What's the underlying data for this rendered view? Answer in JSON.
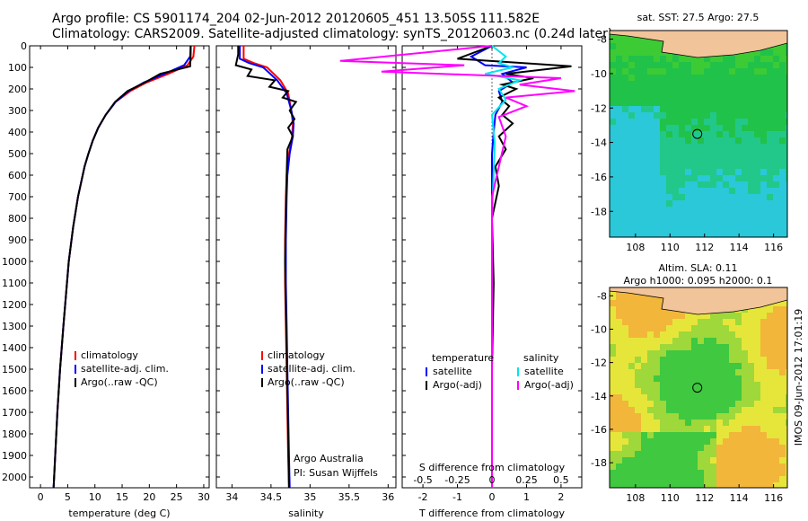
{
  "title_line1": "Argo profile: CS 5901174_204 02-Jun-2012 20120605_451 13.505S 111.582E",
  "title_line2": "Climatology: CARS2009. Satellite-adjusted climatology: synTS_20120603.nc (0.24d later)",
  "map1_header": "sat. SST: 27.5 Argo: 27.5",
  "map2_header_line1": "Altim. SLA: 0.11",
  "map2_header_line2": "Argo h1000: 0.095 h2000: 0.1",
  "side_text": "IMOS 09-Jun-2012 17:01:19",
  "attribution_line1": "Argo Australia",
  "attribution_line2": "PI: Susan Wijffels",
  "colors": {
    "climatology": "#ff0000",
    "satellite": "#0000ff",
    "argo": "#000000",
    "sal_satellite": "#00e5ee",
    "sal_argo": "#ff00ff",
    "land": "#f2c49a"
  },
  "chart_data": [
    {
      "type": "line",
      "xlabel": "temperature (deg C)",
      "ylabel": "",
      "xlim": [
        -2,
        31
      ],
      "ylim": [
        2050,
        0
      ],
      "xticks": [
        0,
        5,
        10,
        15,
        20,
        25,
        30
      ],
      "yticks": [
        0,
        100,
        200,
        300,
        400,
        500,
        600,
        700,
        800,
        900,
        1000,
        1100,
        1200,
        1300,
        1400,
        1500,
        1600,
        1700,
        1800,
        1900,
        2000
      ],
      "legend": [
        "climatology",
        "satellite-adj. clim.",
        "Argo(..raw -QC)"
      ],
      "legend_position": "center-right",
      "series": [
        {
          "name": "climatology",
          "color": "#ff0000",
          "x": [
            28.3,
            28.1,
            27.0,
            23.5,
            19.5,
            16.5,
            13.8,
            12.0,
            10.6,
            9.6,
            8.8,
            8.1,
            6.9,
            6.0,
            5.2,
            4.7,
            4.2,
            3.6,
            3.1,
            2.7,
            2.4
          ],
          "y": [
            0,
            50,
            90,
            130,
            170,
            210,
            260,
            320,
            380,
            440,
            500,
            560,
            700,
            840,
            1000,
            1150,
            1300,
            1500,
            1700,
            1900,
            2050
          ]
        },
        {
          "name": "satellite-adj. clim.",
          "color": "#0000ff",
          "x": [
            27.6,
            27.5,
            26.4,
            22.8,
            19.0,
            16.2,
            13.8,
            12.0,
            10.6,
            9.6,
            8.8,
            8.1,
            6.9,
            6.0,
            5.2,
            4.7,
            4.2,
            3.6,
            3.1,
            2.7,
            2.4
          ],
          "y": [
            0,
            50,
            90,
            130,
            170,
            210,
            260,
            320,
            380,
            440,
            500,
            560,
            700,
            840,
            1000,
            1150,
            1300,
            1500,
            1700,
            1900,
            2050
          ]
        },
        {
          "name": "Argo(..raw -QC)",
          "color": "#000000",
          "x": [
            27.6,
            27.6,
            27.5,
            22.0,
            19.2,
            16.0,
            13.7,
            12.0,
            10.6,
            9.6,
            8.8,
            8.1,
            6.9,
            6.0,
            5.2,
            4.7,
            4.2,
            3.6,
            3.1,
            2.7,
            2.4
          ],
          "y": [
            0,
            40,
            95,
            130,
            170,
            210,
            260,
            320,
            380,
            440,
            500,
            560,
            700,
            840,
            1000,
            1150,
            1300,
            1500,
            1700,
            1900,
            2050
          ]
        }
      ]
    },
    {
      "type": "line",
      "xlabel": "salinity",
      "xlim": [
        33.8,
        36.1
      ],
      "ylim": [
        2050,
        0
      ],
      "xticks": [
        34,
        34.5,
        35,
        35.5,
        36
      ],
      "legend": [
        "climatology",
        "satellite-adj. clim.",
        "Argo(..raw -QC)"
      ],
      "legend_position": "center-right",
      "series": [
        {
          "name": "climatology",
          "color": "#ff0000",
          "x": [
            34.15,
            34.15,
            34.28,
            34.45,
            34.62,
            34.72,
            34.76,
            34.78,
            34.77,
            34.73,
            34.7,
            34.69,
            34.68,
            34.68,
            34.69,
            34.7,
            34.71,
            34.72,
            34.73
          ],
          "y": [
            0,
            60,
            80,
            100,
            160,
            220,
            300,
            360,
            420,
            500,
            600,
            700,
            900,
            1100,
            1300,
            1500,
            1700,
            1900,
            2050
          ]
        },
        {
          "name": "satellite-adj. clim.",
          "color": "#0000ff",
          "x": [
            34.1,
            34.1,
            34.22,
            34.4,
            34.58,
            34.7,
            34.76,
            34.79,
            34.78,
            34.74,
            34.71,
            34.7,
            34.69,
            34.69,
            34.7,
            34.71,
            34.72,
            34.73,
            34.74
          ],
          "y": [
            0,
            60,
            80,
            100,
            160,
            220,
            300,
            360,
            420,
            500,
            600,
            700,
            900,
            1100,
            1300,
            1500,
            1700,
            1900,
            2050
          ]
        },
        {
          "name": "Argo(..raw -QC)",
          "color": "#000000",
          "x": [
            34.08,
            34.08,
            34.05,
            34.25,
            34.2,
            34.55,
            34.48,
            34.72,
            34.65,
            34.82,
            34.74,
            34.8,
            34.72,
            34.78,
            34.71,
            34.7,
            34.69,
            34.68,
            34.69,
            34.7,
            34.71,
            34.72,
            34.73
          ],
          "y": [
            0,
            40,
            90,
            110,
            140,
            160,
            190,
            210,
            240,
            260,
            300,
            340,
            380,
            420,
            480,
            600,
            800,
            1000,
            1200,
            1400,
            1600,
            1800,
            2050
          ]
        }
      ]
    },
    {
      "type": "line",
      "xlabel": "T difference from climatology",
      "xlabel2": "S difference from climatology",
      "xlim": [
        -2.6,
        2.6
      ],
      "ylim": [
        2050,
        0
      ],
      "xticks": [
        -2,
        -1,
        0,
        1,
        2
      ],
      "xticks2": [
        -0.5,
        -0.25,
        0,
        0.25,
        0.5
      ],
      "xtick2_labels": [
        "-0.5",
        "-0.25",
        "0",
        "0.25",
        "0.5"
      ],
      "legend_groups": [
        "temperature",
        "salinity"
      ],
      "legend": [
        "satellite",
        "Argo(-adj)",
        "satellite",
        "Argo(-adj)"
      ],
      "series": [
        {
          "name": "satellite",
          "group": "temperature",
          "color": "#0000ff",
          "x": [
            0,
            -0.6,
            -0.2,
            1.0,
            0.3,
            0.6,
            0.2,
            0.3,
            0.1,
            0.05,
            0.0,
            0.0,
            0.0,
            0.0,
            0.0
          ],
          "y": [
            0,
            50,
            90,
            100,
            130,
            170,
            210,
            260,
            320,
            400,
            500,
            800,
            1200,
            1600,
            2050
          ]
        },
        {
          "name": "Argo(-adj)",
          "group": "temperature",
          "color": "#000000",
          "x": [
            0,
            -1.0,
            2.3,
            1.5,
            0.4,
            1.2,
            0.3,
            0.7,
            0.2,
            0.5,
            0.3,
            0.6,
            0.2,
            0.4,
            0.1,
            0.2,
            0.0,
            0.05,
            0.0,
            0.0
          ],
          "y": [
            0,
            60,
            95,
            110,
            130,
            150,
            180,
            200,
            240,
            280,
            320,
            360,
            420,
            480,
            560,
            650,
            800,
            1100,
            1500,
            2050
          ]
        },
        {
          "name": "satellite",
          "group": "salinity",
          "color": "#00e5ee",
          "x": [
            0,
            0.1,
            0.05,
            0.15,
            -0.05,
            0.2,
            0.05,
            0.1,
            0.0,
            0.02,
            0.0,
            0.0
          ],
          "y": [
            0,
            50,
            80,
            100,
            130,
            160,
            200,
            250,
            320,
            450,
            800,
            2050
          ]
        },
        {
          "name": "Argo(-adj)",
          "group": "salinity",
          "color": "#ff00ff",
          "x": [
            0,
            -1.1,
            -0.2,
            -0.8,
            0.5,
            0.2,
            0.6,
            0.1,
            0.25,
            0.05,
            0.1,
            0.0,
            0.0
          ],
          "y": [
            0,
            70,
            90,
            120,
            150,
            180,
            210,
            240,
            280,
            330,
            420,
            700,
            2050
          ]
        }
      ]
    },
    {
      "type": "heatmap",
      "title": "sat. SST: 27.5 Argo: 27.5",
      "xlim": [
        106.5,
        116.8
      ],
      "ylim": [
        -19.5,
        -7.5
      ],
      "xticks": [
        108,
        110,
        112,
        114,
        116
      ],
      "yticks": [
        -8,
        -10,
        -12,
        -14,
        -16,
        -18
      ],
      "float_position": [
        111.582,
        -13.505
      ]
    },
    {
      "type": "heatmap",
      "title": "Altim. SLA: 0.11",
      "subtitle": "Argo h1000: 0.095 h2000: 0.1",
      "xlim": [
        106.5,
        116.8
      ],
      "ylim": [
        -19.5,
        -7.5
      ],
      "xticks": [
        108,
        110,
        112,
        114,
        116
      ],
      "yticks": [
        -8,
        -10,
        -12,
        -14,
        -16,
        -18
      ],
      "float_position": [
        111.582,
        -13.505
      ]
    }
  ]
}
